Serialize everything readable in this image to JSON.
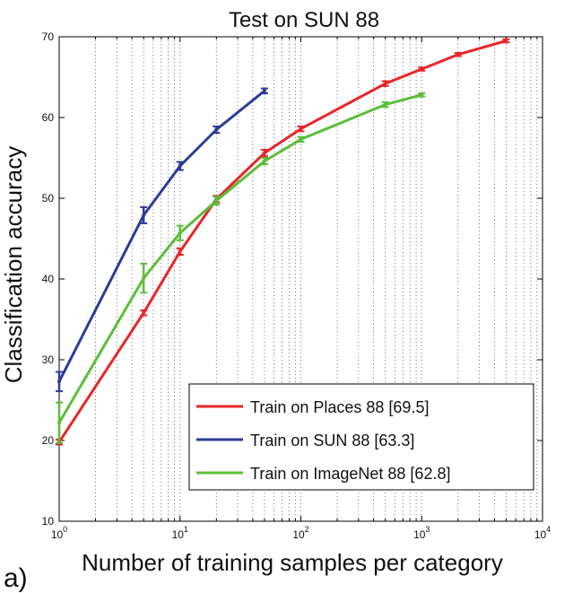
{
  "panel_label": "a)",
  "chart_data": {
    "type": "line",
    "title": "Test on SUN 88",
    "xlabel": "Number of training samples per category",
    "ylabel": "Classification accuracy",
    "x_scale": "log",
    "xlim": [
      1,
      10000
    ],
    "ylim": [
      10,
      70
    ],
    "x_ticks": [
      1,
      10,
      100,
      1000,
      10000
    ],
    "x_tick_labels": [
      {
        "base": "10",
        "exp": "0"
      },
      {
        "base": "10",
        "exp": "1"
      },
      {
        "base": "10",
        "exp": "2"
      },
      {
        "base": "10",
        "exp": "3"
      },
      {
        "base": "10",
        "exp": "4"
      }
    ],
    "y_ticks": [
      10,
      20,
      30,
      40,
      50,
      60,
      70
    ],
    "y_tick_labels": [
      "10",
      "20",
      "30",
      "40",
      "50",
      "60",
      "70"
    ],
    "grid": "vertical dotted (log minor)",
    "legend_position": "bottom-right",
    "series": [
      {
        "name": "Train on Places 88 [69.5]",
        "color": "#e8262b",
        "x": [
          1,
          5,
          10,
          20,
          50,
          100,
          500,
          1000,
          2000,
          5000
        ],
        "y": [
          19.8,
          35.8,
          43.4,
          49.9,
          55.6,
          58.6,
          64.2,
          66.0,
          67.8,
          69.5
        ],
        "err": [
          0.3,
          0.3,
          0.4,
          0.4,
          0.4,
          0.3,
          0.3,
          0.2,
          0.2,
          0.2
        ]
      },
      {
        "name": "Train on SUN 88 [63.3]",
        "color": "#2b3d96",
        "x": [
          1,
          5,
          10,
          20,
          50
        ],
        "y": [
          27.3,
          47.9,
          54.0,
          58.5,
          63.3
        ],
        "err": [
          1.2,
          1.0,
          0.5,
          0.4,
          0.3
        ]
      },
      {
        "name": "Train on ImageNet 88 [62.8]",
        "color": "#5cbd3a",
        "x": [
          1,
          5,
          10,
          20,
          50,
          100,
          500,
          1000
        ],
        "y": [
          22.2,
          40.1,
          45.7,
          49.7,
          54.6,
          57.3,
          61.6,
          62.8
        ],
        "err": [
          2.5,
          1.8,
          0.9,
          0.5,
          0.4,
          0.3,
          0.3,
          0.2
        ]
      }
    ]
  }
}
